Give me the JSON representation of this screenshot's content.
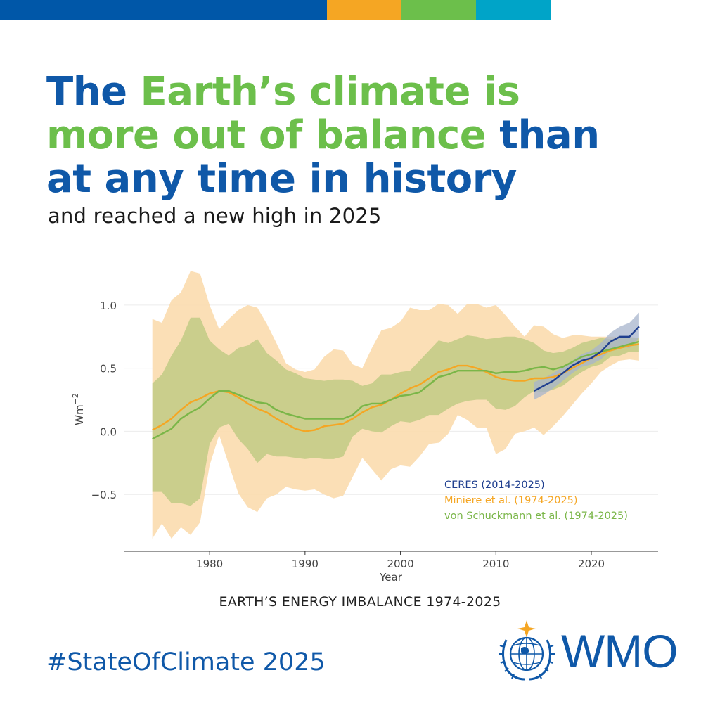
{
  "top_bar": {
    "colors": [
      "#0057a8",
      "#f5a623",
      "#6cbf4b",
      "#00a4c8"
    ]
  },
  "headline": {
    "part1": "The ",
    "part2": "Earth’s climate is",
    "part3": "more out of balance",
    "part4": " than",
    "part5": "at any time in history"
  },
  "subtitle": "and reached a new high in 2025",
  "chart_data": {
    "type": "line",
    "title": "EARTH’S ENERGY IMBALANCE 1974-2025",
    "xlabel": "Year",
    "ylabel": "Wm",
    "ylabel_sup": "−2",
    "xlim": [
      1971,
      2027
    ],
    "ylim": [
      -0.95,
      1.3
    ],
    "xticks": [
      1980,
      1990,
      2000,
      2010,
      2020
    ],
    "xtick_labels": [
      "1980",
      "1990",
      "2000",
      "2010",
      "2020"
    ],
    "yticks": [
      1.0,
      0.5,
      0.0,
      -0.5
    ],
    "ytick_labels": [
      "1.0",
      "0.5",
      "0.0",
      "−0.5"
    ],
    "grid": true,
    "legend_position": "bottom-right",
    "series": [
      {
        "name": "Miniere et al. (1974-2025)",
        "color": "#f5a623",
        "band_color": "#fbdcae",
        "x": [
          1974,
          1975,
          1976,
          1977,
          1978,
          1979,
          1980,
          1981,
          1982,
          1983,
          1984,
          1985,
          1986,
          1987,
          1988,
          1989,
          1990,
          1991,
          1992,
          1993,
          1994,
          1995,
          1996,
          1997,
          1998,
          1999,
          2000,
          2001,
          2002,
          2003,
          2004,
          2005,
          2006,
          2007,
          2008,
          2009,
          2010,
          2011,
          2012,
          2013,
          2014,
          2015,
          2016,
          2017,
          2018,
          2019,
          2020,
          2021,
          2022,
          2023,
          2024,
          2025
        ],
        "values": [
          0.01,
          0.05,
          0.1,
          0.17,
          0.23,
          0.26,
          0.3,
          0.32,
          0.31,
          0.27,
          0.22,
          0.18,
          0.15,
          0.1,
          0.06,
          0.02,
          0.0,
          0.01,
          0.04,
          0.05,
          0.06,
          0.1,
          0.15,
          0.19,
          0.21,
          0.25,
          0.3,
          0.34,
          0.37,
          0.42,
          0.47,
          0.49,
          0.52,
          0.52,
          0.5,
          0.47,
          0.43,
          0.41,
          0.4,
          0.4,
          0.42,
          0.42,
          0.43,
          0.46,
          0.5,
          0.54,
          0.58,
          0.61,
          0.64,
          0.66,
          0.68,
          0.69
        ],
        "upper": [
          0.89,
          0.86,
          1.04,
          1.1,
          1.27,
          1.25,
          1.0,
          0.81,
          0.89,
          0.96,
          1.0,
          0.98,
          0.85,
          0.7,
          0.54,
          0.49,
          0.47,
          0.49,
          0.59,
          0.65,
          0.64,
          0.53,
          0.5,
          0.66,
          0.8,
          0.82,
          0.87,
          0.98,
          0.96,
          0.96,
          1.01,
          1.0,
          0.93,
          1.01,
          1.01,
          0.98,
          1.0,
          0.92,
          0.83,
          0.75,
          0.84,
          0.83,
          0.77,
          0.74,
          0.76,
          0.76,
          0.75,
          0.75,
          0.75,
          0.75,
          0.75,
          0.74
        ],
        "lower": [
          -0.85,
          -0.73,
          -0.85,
          -0.76,
          -0.82,
          -0.72,
          -0.27,
          -0.03,
          -0.26,
          -0.49,
          -0.6,
          -0.64,
          -0.53,
          -0.5,
          -0.44,
          -0.46,
          -0.47,
          -0.46,
          -0.5,
          -0.53,
          -0.51,
          -0.36,
          -0.21,
          -0.3,
          -0.39,
          -0.3,
          -0.27,
          -0.28,
          -0.2,
          -0.1,
          -0.09,
          -0.02,
          0.13,
          0.09,
          0.03,
          0.03,
          -0.18,
          -0.14,
          -0.02,
          0.0,
          0.03,
          -0.03,
          0.04,
          0.12,
          0.21,
          0.3,
          0.38,
          0.47,
          0.52,
          0.56,
          0.57,
          0.56
        ]
      },
      {
        "name": "von Schuckmann et al. (1974-2025)",
        "color": "#7ab648",
        "band_color": "#b9c87e",
        "x": [
          1974,
          1975,
          1976,
          1977,
          1978,
          1979,
          1980,
          1981,
          1982,
          1983,
          1984,
          1985,
          1986,
          1987,
          1988,
          1989,
          1990,
          1991,
          1992,
          1993,
          1994,
          1995,
          1996,
          1997,
          1998,
          1999,
          2000,
          2001,
          2002,
          2003,
          2004,
          2005,
          2006,
          2007,
          2008,
          2009,
          2010,
          2011,
          2012,
          2013,
          2014,
          2015,
          2016,
          2017,
          2018,
          2019,
          2020,
          2021,
          2022,
          2023,
          2024,
          2025
        ],
        "values": [
          -0.06,
          -0.02,
          0.02,
          0.1,
          0.15,
          0.19,
          0.26,
          0.32,
          0.32,
          0.29,
          0.26,
          0.23,
          0.22,
          0.17,
          0.14,
          0.12,
          0.1,
          0.1,
          0.1,
          0.1,
          0.1,
          0.13,
          0.2,
          0.22,
          0.22,
          0.25,
          0.28,
          0.29,
          0.31,
          0.37,
          0.43,
          0.45,
          0.48,
          0.48,
          0.48,
          0.48,
          0.46,
          0.47,
          0.47,
          0.48,
          0.5,
          0.51,
          0.49,
          0.51,
          0.55,
          0.59,
          0.61,
          0.63,
          0.65,
          0.67,
          0.69,
          0.71
        ],
        "upper": [
          0.38,
          0.45,
          0.6,
          0.72,
          0.9,
          0.9,
          0.72,
          0.65,
          0.6,
          0.66,
          0.68,
          0.73,
          0.62,
          0.56,
          0.49,
          0.46,
          0.42,
          0.41,
          0.4,
          0.41,
          0.41,
          0.4,
          0.36,
          0.38,
          0.45,
          0.45,
          0.47,
          0.48,
          0.56,
          0.64,
          0.72,
          0.7,
          0.73,
          0.76,
          0.75,
          0.73,
          0.74,
          0.75,
          0.75,
          0.73,
          0.7,
          0.64,
          0.62,
          0.63,
          0.66,
          0.7,
          0.72,
          0.74,
          0.73,
          0.74,
          0.74,
          0.74
        ],
        "lower": [
          -0.48,
          -0.48,
          -0.57,
          -0.57,
          -0.59,
          -0.53,
          -0.1,
          0.03,
          0.06,
          -0.06,
          -0.14,
          -0.25,
          -0.18,
          -0.2,
          -0.2,
          -0.21,
          -0.22,
          -0.21,
          -0.22,
          -0.22,
          -0.2,
          -0.04,
          0.02,
          0.0,
          -0.01,
          0.04,
          0.08,
          0.07,
          0.09,
          0.13,
          0.13,
          0.18,
          0.22,
          0.24,
          0.25,
          0.25,
          0.18,
          0.17,
          0.2,
          0.27,
          0.32,
          0.31,
          0.33,
          0.36,
          0.42,
          0.47,
          0.51,
          0.53,
          0.59,
          0.6,
          0.63,
          0.63
        ]
      },
      {
        "name": "CERES (2014-2025)",
        "color": "#1f3f8f",
        "band_color": "#a7b4cc",
        "x": [
          2014,
          2015,
          2016,
          2017,
          2018,
          2019,
          2020,
          2021,
          2022,
          2023,
          2024,
          2025
        ],
        "values": [
          0.32,
          0.36,
          0.4,
          0.46,
          0.52,
          0.56,
          0.58,
          0.63,
          0.71,
          0.75,
          0.75,
          0.83
        ],
        "upper": [
          0.39,
          0.42,
          0.46,
          0.51,
          0.56,
          0.61,
          0.64,
          0.7,
          0.78,
          0.83,
          0.86,
          0.94
        ],
        "lower": [
          0.25,
          0.29,
          0.34,
          0.4,
          0.46,
          0.51,
          0.53,
          0.57,
          0.64,
          0.67,
          0.66,
          0.74
        ]
      }
    ]
  },
  "hashtag": "#StateOfClimate 2025",
  "logo": {
    "text": "WMO"
  }
}
